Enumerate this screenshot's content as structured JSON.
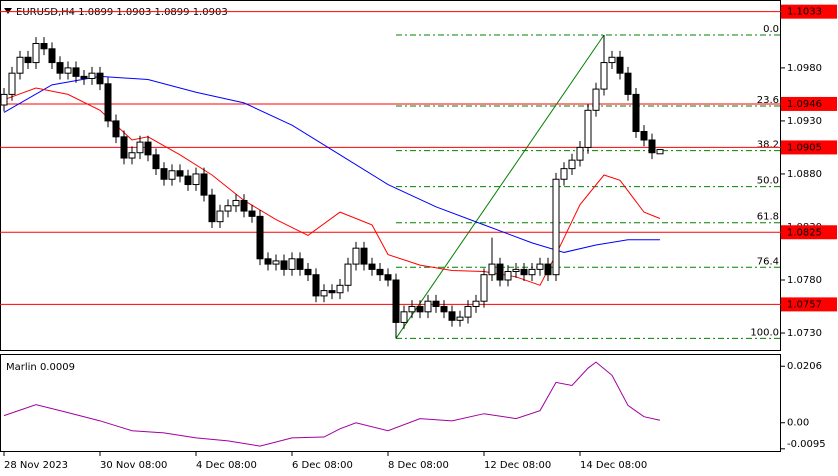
{
  "chart_data": [
    {
      "type": "candlestick",
      "title": "EURUSD,H4  1.0899 1.0903 1.0899 1.0903",
      "xlim": [
        -0.5,
        97.125
      ],
      "xticks": [
        {
          "value": 0,
          "label": "28 Nov 2023"
        },
        {
          "value": 12,
          "label": "30 Nov 08:00"
        },
        {
          "value": 24,
          "label": "4 Dec 08:00"
        },
        {
          "value": 36,
          "label": "6 Dec 08:00"
        },
        {
          "value": 48,
          "label": "8 Dec 08:00"
        },
        {
          "value": 60,
          "label": "12 Dec 08:00"
        },
        {
          "value": 72,
          "label": "14 Dec 08:00"
        }
      ],
      "ylim": [
        1.0714,
        1.1044
      ],
      "yticks": [
        {
          "value": 1.098,
          "label": "1.0980"
        },
        {
          "value": 1.093,
          "label": "1.0930"
        },
        {
          "value": 1.088,
          "label": "1.0880"
        },
        {
          "value": 1.083,
          "label": "1.0830"
        },
        {
          "value": 1.078,
          "label": "1.0780"
        },
        {
          "value": 1.073,
          "label": "1.0730"
        }
      ],
      "color_up": "#ffffff",
      "color_down": "#000000",
      "open": [
        1.0945,
        1.0955,
        1.0975,
        1.099,
        1.0985,
        1.1003,
        1.0998,
        1.0985,
        1.0975,
        1.098,
        1.0972,
        1.097,
        1.0975,
        1.0965,
        1.093,
        1.0915,
        1.0895,
        1.09,
        1.091,
        1.0898,
        1.0885,
        1.0875,
        1.0883,
        1.0878,
        1.087,
        1.088,
        1.086,
        1.0835,
        1.0845,
        1.085,
        1.0855,
        1.0845,
        1.084,
        1.08,
        1.0795,
        1.0798,
        1.079,
        1.08,
        1.079,
        1.0785,
        1.0765,
        1.077,
        1.0768,
        1.0775,
        1.0795,
        1.081,
        1.0795,
        1.079,
        1.0785,
        1.078,
        1.074,
        1.075,
        1.0755,
        1.075,
        1.076,
        1.0755,
        1.075,
        1.0742,
        1.0745,
        1.0755,
        1.076,
        1.0785,
        1.0795,
        1.078,
        1.0788,
        1.079,
        1.0785,
        1.079,
        1.0795,
        1.0785,
        1.0875,
        1.0885,
        1.0893,
        1.0905,
        1.094,
        1.096,
        1.0985,
        1.099,
        1.0975,
        1.0955,
        1.092,
        1.0912,
        1.0899
      ],
      "high": [
        1.0961,
        1.0981,
        1.0996,
        1.0996,
        1.1009,
        1.1009,
        1.1004,
        1.0991,
        1.0986,
        1.0986,
        1.0978,
        1.0981,
        1.0981,
        1.0971,
        1.0936,
        1.0921,
        1.0906,
        1.0916,
        1.0916,
        1.0904,
        1.0891,
        1.0889,
        1.0889,
        1.0884,
        1.0886,
        1.0886,
        1.0866,
        1.0851,
        1.0856,
        1.0861,
        1.0861,
        1.0851,
        1.0846,
        1.0806,
        1.0804,
        1.0804,
        1.0806,
        1.0806,
        1.0796,
        1.0791,
        1.0776,
        1.0776,
        1.0781,
        1.0801,
        1.0816,
        1.0816,
        1.0801,
        1.0796,
        1.0791,
        1.0786,
        1.0756,
        1.0761,
        1.0761,
        1.0766,
        1.0766,
        1.0761,
        1.0756,
        1.0751,
        1.0761,
        1.0766,
        1.0791,
        1.082,
        1.0801,
        1.0794,
        1.0796,
        1.0796,
        1.0796,
        1.0801,
        1.0801,
        1.0881,
        1.0891,
        1.0899,
        1.0911,
        1.0946,
        1.0966,
        1.1011,
        1.0996,
        1.0996,
        1.0981,
        1.0961,
        1.0926,
        1.0918,
        1.0903
      ],
      "low": [
        1.0939,
        1.0949,
        1.0969,
        1.0979,
        1.0979,
        1.0992,
        1.0979,
        1.0969,
        1.0969,
        1.0966,
        1.0964,
        1.0964,
        1.0959,
        1.0924,
        1.0909,
        1.0889,
        1.0889,
        1.0894,
        1.0892,
        1.0879,
        1.0869,
        1.0869,
        1.0872,
        1.0864,
        1.0864,
        1.0854,
        1.0829,
        1.0829,
        1.0839,
        1.0844,
        1.0839,
        1.0834,
        1.0794,
        1.0789,
        1.0789,
        1.0784,
        1.0784,
        1.0784,
        1.0779,
        1.0759,
        1.0759,
        1.0762,
        1.0762,
        1.0769,
        1.0789,
        1.0789,
        1.0784,
        1.0779,
        1.0774,
        1.0725,
        1.0734,
        1.0744,
        1.0744,
        1.0744,
        1.0749,
        1.0744,
        1.0736,
        1.0736,
        1.0739,
        1.0749,
        1.0754,
        1.0779,
        1.0774,
        1.0774,
        1.0782,
        1.0779,
        1.0779,
        1.0784,
        1.0779,
        1.0779,
        1.0869,
        1.0879,
        1.0887,
        1.0899,
        1.0934,
        1.0954,
        1.0979,
        1.0969,
        1.0949,
        1.0914,
        1.0906,
        1.0894,
        1.0899
      ],
      "close": [
        1.0955,
        1.0975,
        1.099,
        1.0985,
        1.1003,
        1.0998,
        1.0985,
        1.0975,
        1.098,
        1.0972,
        1.097,
        1.0975,
        1.0965,
        1.093,
        1.0915,
        1.0895,
        1.09,
        1.091,
        1.0898,
        1.0885,
        1.0875,
        1.0883,
        1.0878,
        1.087,
        1.088,
        1.086,
        1.0835,
        1.0845,
        1.085,
        1.0855,
        1.0845,
        1.084,
        1.08,
        1.0795,
        1.0798,
        1.079,
        1.08,
        1.079,
        1.0785,
        1.0765,
        1.077,
        1.0768,
        1.0775,
        1.0795,
        1.081,
        1.0795,
        1.079,
        1.0785,
        1.078,
        1.074,
        1.075,
        1.0755,
        1.075,
        1.076,
        1.0755,
        1.075,
        1.0742,
        1.0745,
        1.0755,
        1.076,
        1.0785,
        1.0795,
        1.078,
        1.0788,
        1.079,
        1.0785,
        1.079,
        1.0795,
        1.0785,
        1.0875,
        1.0885,
        1.0893,
        1.0905,
        1.094,
        1.096,
        1.0985,
        1.099,
        1.0975,
        1.0955,
        1.092,
        1.0912,
        1.09,
        1.0903
      ],
      "lines": [
        {
          "color": "#0000ff",
          "x": [
            0,
            6,
            12,
            18,
            24,
            30,
            36,
            42,
            48,
            54,
            60,
            66,
            70,
            74,
            78,
            82
          ],
          "values": [
            1.0938,
            1.0964,
            1.0972,
            1.0969,
            1.0957,
            1.0947,
            1.0926,
            1.0898,
            1.087,
            1.0849,
            1.0832,
            1.0815,
            1.0806,
            1.0813,
            1.0818,
            1.0818
          ]
        },
        {
          "color": "#ff0000",
          "x": [
            0,
            4,
            8,
            12,
            16,
            18,
            22,
            26,
            30,
            34,
            38,
            42,
            46,
            48,
            52,
            56,
            60,
            64,
            67,
            69,
            72,
            75,
            77,
            80,
            82
          ],
          "values": [
            1.095,
            1.0961,
            1.0955,
            1.094,
            1.0912,
            1.0915,
            1.0898,
            1.0879,
            1.0855,
            1.0837,
            1.0822,
            1.0844,
            1.0832,
            1.0804,
            1.0794,
            1.0789,
            1.0788,
            1.0783,
            1.0775,
            1.0804,
            1.0851,
            1.0879,
            1.0874,
            1.0844,
            1.0838
          ]
        }
      ],
      "levels": {
        "color": "#ff0000",
        "values": [
          1.1033,
          1.0946,
          1.0905,
          1.0825,
          1.0757
        ]
      },
      "fibonacci": {
        "color": "#008000",
        "label_color": "#6b7d2a",
        "x": [
          49,
          75
        ],
        "levels": [
          {
            "label": "0.0",
            "value": 1.1011
          },
          {
            "label": "23.6",
            "value": 1.0944
          },
          {
            "label": "38.2",
            "value": 1.0902
          },
          {
            "label": "50.0",
            "value": 1.0868
          },
          {
            "label": "61.8",
            "value": 1.0834
          },
          {
            "label": "76.4",
            "value": 1.0792
          },
          {
            "label": "100.0",
            "value": 1.0725
          }
        ]
      }
    },
    {
      "type": "line",
      "label": "Marlin 0.0009",
      "ylim": [
        -0.0103,
        0.0247
      ],
      "yticks": [
        0.0206,
        {
          "value": 0,
          "label": "0.00"
        },
        -0.0095
      ],
      "series": [
        {
          "color": "#a000a0",
          "x": [
            0,
            4,
            8,
            12,
            16,
            20,
            24,
            28,
            32,
            36,
            40,
            42,
            44,
            48,
            52,
            56,
            60,
            64,
            67,
            69,
            71,
            73,
            74,
            76,
            78,
            80,
            82
          ],
          "values": [
            0.0026,
            0.0066,
            0.0037,
            0.0007,
            -0.0029,
            -0.0037,
            -0.0055,
            -0.0066,
            -0.0085,
            -0.0055,
            -0.0052,
            -0.0022,
            0,
            -0.0029,
            0.0015,
            0.0007,
            0.0033,
            0.0015,
            0.0044,
            0.0147,
            0.0136,
            0.0199,
            0.0221,
            0.0173,
            0.0063,
            0.0022,
            0.0009
          ]
        }
      ]
    }
  ]
}
